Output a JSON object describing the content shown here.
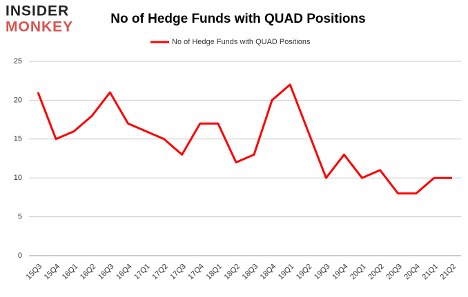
{
  "logo": {
    "top": "INSIDER",
    "bottom": "MONKEY"
  },
  "chart_data": {
    "type": "line",
    "title": "No of Hedge Funds with QUAD Positions",
    "categories": [
      "15Q3",
      "15Q4",
      "16Q1",
      "16Q2",
      "16Q3",
      "16Q4",
      "17Q1",
      "17Q2",
      "17Q3",
      "17Q4",
      "18Q1",
      "18Q2",
      "18Q3",
      "18Q4",
      "19Q1",
      "19Q2",
      "19Q3",
      "19Q4",
      "20Q1",
      "20Q2",
      "20Q3",
      "20Q4",
      "21Q1",
      "21Q2"
    ],
    "series": [
      {
        "name": "No of Hedge Funds with QUAD Positions",
        "color": "#ff0000",
        "values": [
          21,
          15,
          16,
          18,
          21,
          17,
          16,
          15,
          13,
          17,
          17,
          12,
          13,
          20,
          22,
          16,
          10,
          13,
          10,
          11,
          8,
          8,
          10,
          10
        ]
      }
    ],
    "ylim": [
      0,
      25
    ],
    "yticks": [
      0,
      5,
      10,
      15,
      20,
      25
    ],
    "grid": true,
    "legend": "top"
  }
}
